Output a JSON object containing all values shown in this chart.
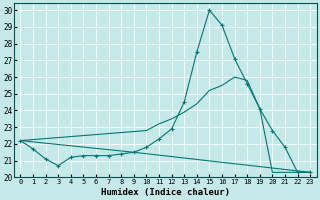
{
  "xlabel": "Humidex (Indice chaleur)",
  "background_color": "#c5e8e8",
  "grid_color": "#b0d8d8",
  "line_color": "#007878",
  "xlim": [
    -0.5,
    23.5
  ],
  "ylim": [
    20,
    30.4
  ],
  "yticks": [
    20,
    21,
    22,
    23,
    24,
    25,
    26,
    27,
    28,
    29,
    30
  ],
  "xticks": [
    0,
    1,
    2,
    3,
    4,
    5,
    6,
    7,
    8,
    9,
    10,
    11,
    12,
    13,
    14,
    15,
    16,
    17,
    18,
    19,
    20,
    21,
    22,
    23
  ],
  "series_main": {
    "x": [
      0,
      1,
      2,
      3,
      4,
      5,
      6,
      7,
      8,
      9,
      10,
      11,
      12,
      13,
      14,
      15,
      16,
      17,
      18,
      19,
      20,
      21,
      22,
      23
    ],
    "y": [
      22.2,
      21.7,
      21.1,
      20.7,
      21.2,
      21.3,
      21.3,
      21.3,
      21.4,
      21.5,
      21.8,
      22.3,
      22.9,
      24.5,
      27.5,
      30.0,
      29.1,
      27.1,
      25.6,
      24.1,
      22.8,
      21.8,
      20.3,
      20.3
    ]
  },
  "series_envelope": {
    "x": [
      0,
      10,
      11,
      12,
      13,
      14,
      15,
      16,
      17,
      18,
      19,
      20,
      21,
      22,
      23
    ],
    "y": [
      22.2,
      22.8,
      23.2,
      23.5,
      23.9,
      24.4,
      25.2,
      25.5,
      26.0,
      25.8,
      24.1,
      20.3,
      20.3,
      20.3,
      20.3
    ]
  },
  "series_line": {
    "x": [
      0,
      9,
      23
    ],
    "y": [
      22.2,
      21.5,
      20.3
    ]
  }
}
